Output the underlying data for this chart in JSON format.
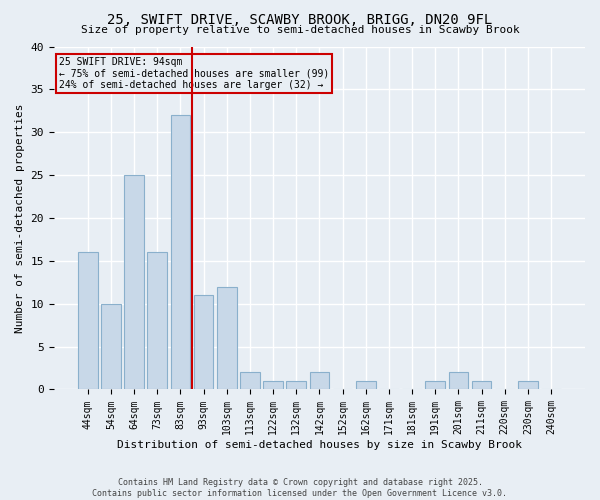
{
  "title1": "25, SWIFT DRIVE, SCAWBY BROOK, BRIGG, DN20 9FL",
  "title2": "Size of property relative to semi-detached houses in Scawby Brook",
  "xlabel": "Distribution of semi-detached houses by size in Scawby Brook",
  "ylabel": "Number of semi-detached properties",
  "categories": [
    "44sqm",
    "54sqm",
    "64sqm",
    "73sqm",
    "83sqm",
    "93sqm",
    "103sqm",
    "113sqm",
    "122sqm",
    "132sqm",
    "142sqm",
    "152sqm",
    "162sqm",
    "171sqm",
    "181sqm",
    "191sqm",
    "201sqm",
    "211sqm",
    "220sqm",
    "230sqm",
    "240sqm"
  ],
  "values": [
    16,
    10,
    25,
    16,
    32,
    11,
    12,
    2,
    1,
    1,
    2,
    0,
    1,
    0,
    0,
    1,
    2,
    1,
    0,
    1,
    0
  ],
  "bar_color": "#c8d8e8",
  "bar_edge_color": "#8ab0cc",
  "property_bin_index": 5,
  "annotation_title": "25 SWIFT DRIVE: 94sqm",
  "annotation_line1": "← 75% of semi-detached houses are smaller (99)",
  "annotation_line2": "24% of semi-detached houses are larger (32) →",
  "vline_color": "#cc0000",
  "annotation_box_color": "#cc0000",
  "bg_color": "#e8eef4",
  "grid_color": "#ffffff",
  "footer": "Contains HM Land Registry data © Crown copyright and database right 2025.\nContains public sector information licensed under the Open Government Licence v3.0.",
  "ylim": [
    0,
    40
  ],
  "yticks": [
    0,
    5,
    10,
    15,
    20,
    25,
    30,
    35,
    40
  ]
}
